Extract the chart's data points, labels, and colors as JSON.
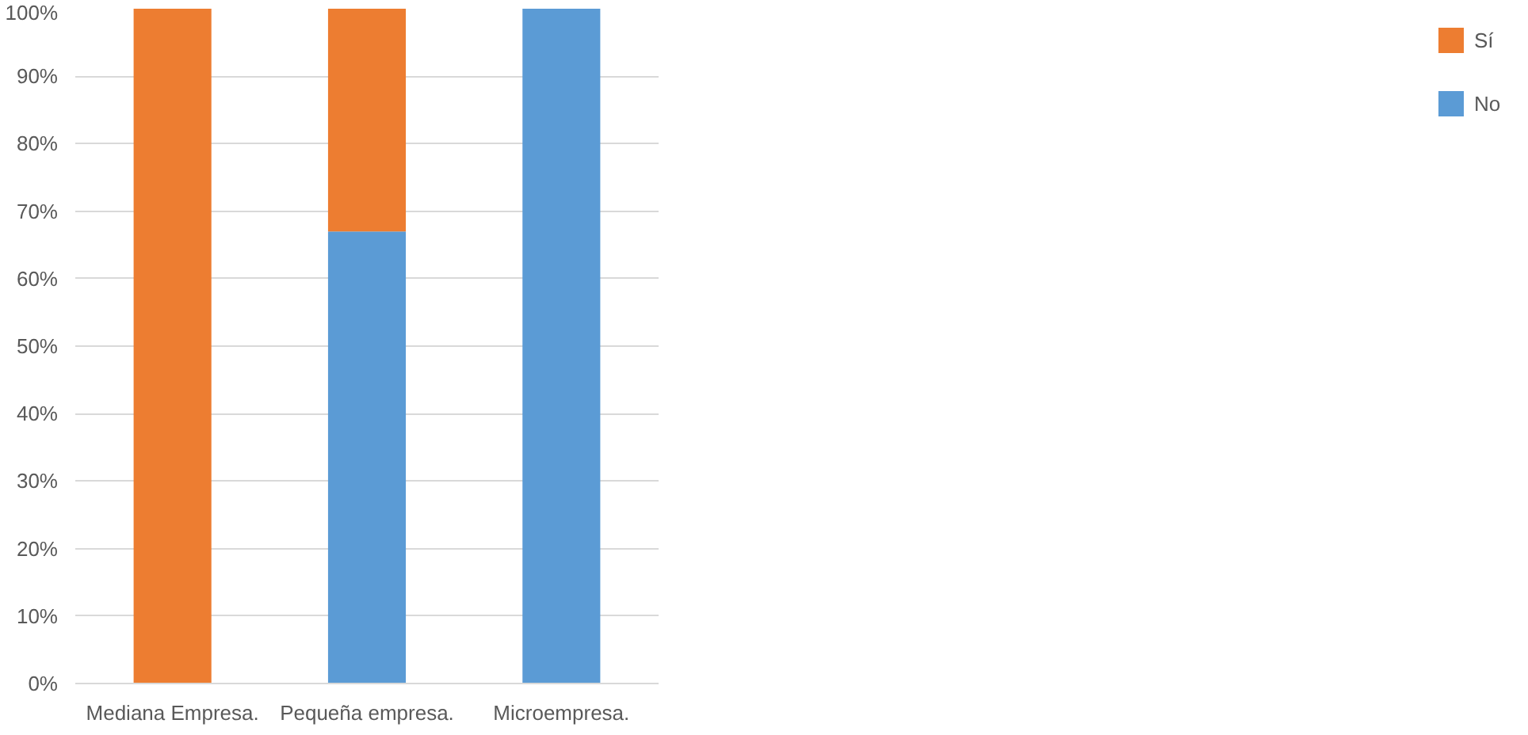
{
  "chart_data": {
    "type": "bar",
    "stacked": true,
    "categories": [
      "Mediana Empresa.",
      "Pequeña empresa.",
      "Microempresa."
    ],
    "series": [
      {
        "name": "No",
        "color": "#5b9bd5",
        "values": [
          0,
          67,
          100
        ]
      },
      {
        "name": "Sí",
        "color": "#ed7d31",
        "values": [
          100,
          33,
          0
        ]
      }
    ],
    "ylim": [
      0,
      100
    ],
    "yticks": [
      {
        "value": 0,
        "label": "0%"
      },
      {
        "value": 10,
        "label": "10%"
      },
      {
        "value": 20,
        "label": "20%"
      },
      {
        "value": 30,
        "label": "30%"
      },
      {
        "value": 40,
        "label": "40%"
      },
      {
        "value": 50,
        "label": "50%"
      },
      {
        "value": 60,
        "label": "60%"
      },
      {
        "value": 70,
        "label": "70%"
      },
      {
        "value": 80,
        "label": "80%"
      },
      {
        "value": 90,
        "label": "90%"
      },
      {
        "value": 100,
        "label": "100%"
      }
    ],
    "grid": "y",
    "legend": "right"
  }
}
